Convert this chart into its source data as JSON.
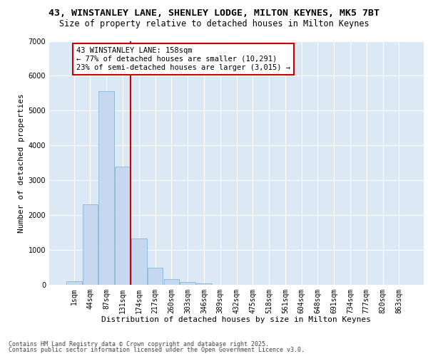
{
  "title_line1": "43, WINSTANLEY LANE, SHENLEY LODGE, MILTON KEYNES, MK5 7BT",
  "title_line2": "Size of property relative to detached houses in Milton Keynes",
  "xlabel": "Distribution of detached houses by size in Milton Keynes",
  "ylabel": "Number of detached properties",
  "categories": [
    "1sqm",
    "44sqm",
    "87sqm",
    "131sqm",
    "174sqm",
    "217sqm",
    "260sqm",
    "303sqm",
    "346sqm",
    "389sqm",
    "432sqm",
    "475sqm",
    "518sqm",
    "561sqm",
    "604sqm",
    "648sqm",
    "691sqm",
    "734sqm",
    "777sqm",
    "820sqm",
    "863sqm"
  ],
  "values": [
    100,
    2300,
    5550,
    3400,
    1330,
    490,
    165,
    85,
    40,
    0,
    0,
    0,
    0,
    0,
    0,
    0,
    0,
    0,
    0,
    0,
    0
  ],
  "bar_color": "#c5d8ef",
  "bar_edge_color": "#7aafd4",
  "background_color": "#dce9f5",
  "grid_color": "#ffffff",
  "vline_x": 3.5,
  "vline_color": "#cc0000",
  "annotation_text": "43 WINSTANLEY LANE: 158sqm\n← 77% of detached houses are smaller (10,291)\n23% of semi-detached houses are larger (3,015) →",
  "annotation_box_color": "#cc0000",
  "ylim": [
    0,
    7000
  ],
  "yticks": [
    0,
    1000,
    2000,
    3000,
    4000,
    5000,
    6000,
    7000
  ],
  "footer_line1": "Contains HM Land Registry data © Crown copyright and database right 2025.",
  "footer_line2": "Contains public sector information licensed under the Open Government Licence v3.0.",
  "title_fontsize": 9.5,
  "subtitle_fontsize": 8.5,
  "axis_label_fontsize": 8,
  "tick_fontsize": 7,
  "annotation_fontsize": 7.5,
  "footer_fontsize": 6
}
